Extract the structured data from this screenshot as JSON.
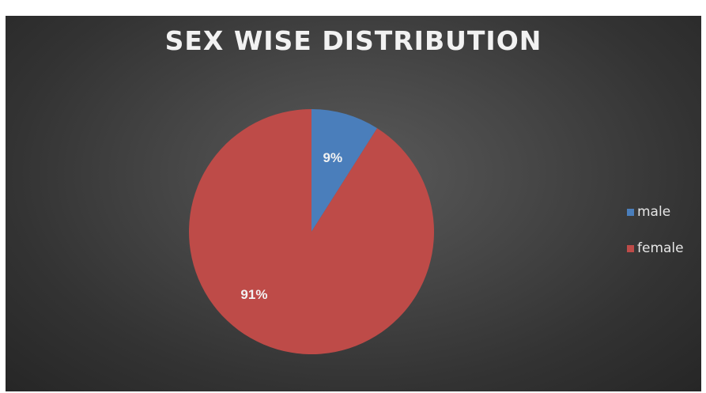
{
  "chart_data": {
    "type": "pie",
    "title": "SEX WISE DISTRIBUTION",
    "categories": [
      "male",
      "female"
    ],
    "values": [
      9,
      91
    ],
    "data_labels": [
      "9%",
      "91%"
    ],
    "colors": [
      "#4a7ebb",
      "#be4b48"
    ],
    "legend_position": "right"
  }
}
